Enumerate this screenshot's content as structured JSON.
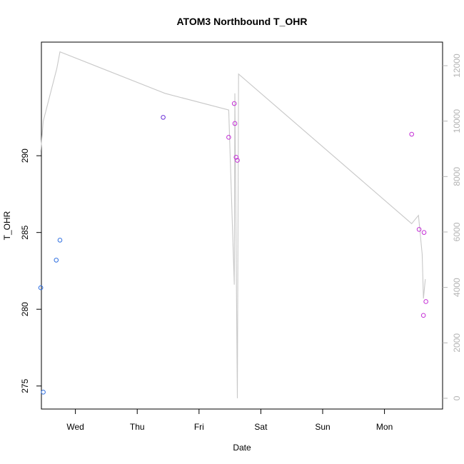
{
  "chart_data": {
    "type": "scatter",
    "title": "ATOM3 Northbound T_OHR",
    "xlabel": "Date",
    "ylabel": "T_OHR",
    "x_tick_labels": [
      "Wed",
      "Thu",
      "Fri",
      "Sat",
      "Sun",
      "Mon"
    ],
    "y_ticks": [
      275,
      280,
      285,
      290
    ],
    "y2_ticks": [
      0,
      2000,
      4000,
      6000,
      8000,
      10000,
      12000
    ],
    "xlim": [
      -0.55,
      5.94
    ],
    "ylim": [
      273.5,
      297.4
    ],
    "y2lim": [
      -388,
      12850
    ],
    "grid": false,
    "series": [
      {
        "kind": "points",
        "color": "#2f6fe0",
        "points": [
          {
            "x": -0.56,
            "y": 281.4
          },
          {
            "x": -0.52,
            "y": 274.6
          },
          {
            "x": -0.31,
            "y": 283.2
          },
          {
            "x": -0.25,
            "y": 284.5
          }
        ]
      },
      {
        "kind": "points",
        "color": "#6a2fd6",
        "points": [
          {
            "x": 1.42,
            "y": 292.5
          }
        ]
      },
      {
        "kind": "points",
        "color": "#c42fd6",
        "points": [
          {
            "x": 2.48,
            "y": 291.2
          },
          {
            "x": 2.57,
            "y": 293.4
          },
          {
            "x": 2.58,
            "y": 292.1
          },
          {
            "x": 2.6,
            "y": 289.9
          },
          {
            "x": 2.62,
            "y": 289.7
          },
          {
            "x": 5.44,
            "y": 291.4
          },
          {
            "x": 5.56,
            "y": 285.2
          },
          {
            "x": 5.64,
            "y": 285.0
          },
          {
            "x": 5.63,
            "y": 279.6
          },
          {
            "x": 5.67,
            "y": 280.5
          }
        ]
      },
      {
        "kind": "line",
        "axis": "right",
        "color": "#c8c8c8",
        "points": [
          {
            "x": -0.56,
            "y": 8900
          },
          {
            "x": -0.52,
            "y": 10000
          },
          {
            "x": -0.3,
            "y": 11900
          },
          {
            "x": -0.25,
            "y": 12500
          },
          {
            "x": 1.45,
            "y": 11000
          },
          {
            "x": 2.48,
            "y": 10400
          },
          {
            "x": 2.57,
            "y": 4100
          },
          {
            "x": 2.58,
            "y": 11000
          },
          {
            "x": 2.62,
            "y": 0
          },
          {
            "x": 2.64,
            "y": 11700
          },
          {
            "x": 5.44,
            "y": 6300
          },
          {
            "x": 5.55,
            "y": 6600
          },
          {
            "x": 5.61,
            "y": 5200
          },
          {
            "x": 5.63,
            "y": 3600
          },
          {
            "x": 5.66,
            "y": 4300
          }
        ]
      }
    ]
  }
}
